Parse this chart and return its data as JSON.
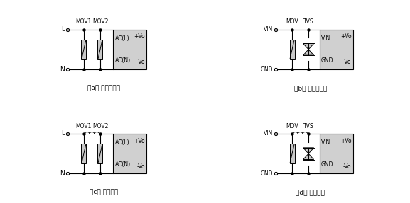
{
  "bg_color": "#ffffff",
  "box_facecolor": "#d0d0d0",
  "line_color": "#000000",
  "mov_facecolor": "#c0c0c0",
  "captions": [
    "（a） 不恰当应用",
    "（b） 不恰当应用",
    "（c） 推荐应用",
    "（d） 推荐应用"
  ],
  "figsize": [
    5.77,
    2.87
  ],
  "dpi": 100
}
